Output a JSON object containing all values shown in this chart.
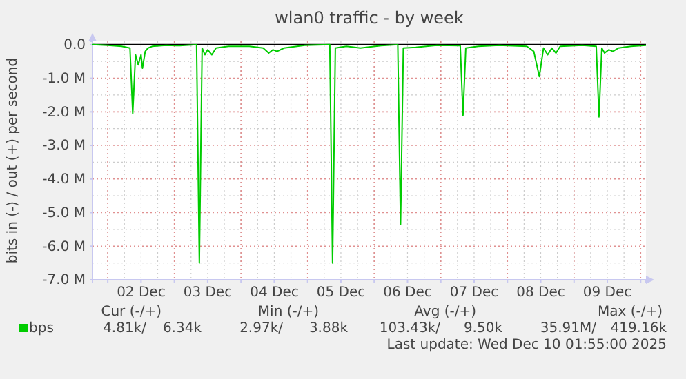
{
  "chart_data": {
    "type": "line",
    "title": "wlan0 traffic - by week",
    "ylabel": "bits in (-) / out (+) per second",
    "x": [
      "2025-12-01T18:30",
      "2025-12-02T00:00",
      "2025-12-02T05:00",
      "2025-12-02T08:00",
      "2025-12-02T09:00",
      "2025-12-02T10:00",
      "2025-12-02T11:00",
      "2025-12-02T12:00",
      "2025-12-02T12:30",
      "2025-12-02T13:30",
      "2025-12-02T14:30",
      "2025-12-02T16:00",
      "2025-12-02T21:00",
      "2025-12-03T02:00",
      "2025-12-03T08:00",
      "2025-12-03T09:00",
      "2025-12-03T10:00",
      "2025-12-03T11:00",
      "2025-12-03T12:00",
      "2025-12-03T13:30",
      "2025-12-03T15:00",
      "2025-12-03T19:30",
      "2025-12-04T03:00",
      "2025-12-04T08:00",
      "2025-12-04T10:00",
      "2025-12-04T11:30",
      "2025-12-04T13:00",
      "2025-12-04T15:30",
      "2025-12-04T23:00",
      "2025-12-05T08:00",
      "2025-12-05T09:00",
      "2025-12-05T10:00",
      "2025-12-05T14:00",
      "2025-12-05T19:00",
      "2025-12-06T02:30",
      "2025-12-06T08:30",
      "2025-12-06T09:30",
      "2025-12-06T10:30",
      "2025-12-06T15:00",
      "2025-12-06T22:30",
      "2025-12-07T07:00",
      "2025-12-07T08:00",
      "2025-12-07T09:00",
      "2025-12-07T13:30",
      "2025-12-07T21:00",
      "2025-12-08T07:00",
      "2025-12-08T09:30",
      "2025-12-08T11:30",
      "2025-12-08T13:00",
      "2025-12-08T14:30",
      "2025-12-08T16:00",
      "2025-12-08T17:30",
      "2025-12-08T19:00",
      "2025-12-09T03:00",
      "2025-12-09T08:00",
      "2025-12-09T09:00",
      "2025-12-09T10:00",
      "2025-12-09T11:00",
      "2025-12-09T12:30",
      "2025-12-09T14:00",
      "2025-12-09T16:00",
      "2025-12-09T20:30",
      "2025-12-10T01:55"
    ],
    "series": [
      {
        "name": "bps",
        "color": "#00cc00",
        "values": [
          0,
          -0.02,
          -0.05,
          -0.1,
          -2.05,
          -0.3,
          -0.6,
          -0.3,
          -0.7,
          -0.2,
          -0.1,
          -0.05,
          -0.02,
          -0.03,
          0,
          -6.5,
          -0.1,
          -0.3,
          -0.15,
          -0.3,
          -0.1,
          -0.05,
          -0.05,
          -0.1,
          -0.25,
          -0.15,
          -0.2,
          -0.1,
          -0.02,
          0,
          -6.5,
          -0.1,
          -0.05,
          -0.1,
          -0.03,
          0,
          -5.35,
          -0.1,
          -0.08,
          -0.02,
          -0.03,
          -2.1,
          -0.1,
          -0.05,
          -0.02,
          -0.05,
          -0.2,
          -0.95,
          -0.1,
          -0.3,
          -0.1,
          -0.25,
          -0.05,
          -0.02,
          -0.05,
          -2.15,
          -0.1,
          -0.25,
          -0.15,
          -0.2,
          -0.1,
          -0.05,
          -0.02
        ]
      }
    ],
    "xlim": [
      "2025-12-01T18:30",
      "2025-12-10T01:55"
    ],
    "xticks": [
      {
        "value": "2025-12-02T00:00",
        "label": null
      },
      {
        "value": "2025-12-02T12:00",
        "label": "02 Dec"
      },
      {
        "value": "2025-12-03T00:00",
        "label": null
      },
      {
        "value": "2025-12-03T12:00",
        "label": "03 Dec"
      },
      {
        "value": "2025-12-04T00:00",
        "label": null
      },
      {
        "value": "2025-12-04T12:00",
        "label": "04 Dec"
      },
      {
        "value": "2025-12-05T00:00",
        "label": null
      },
      {
        "value": "2025-12-05T12:00",
        "label": "05 Dec"
      },
      {
        "value": "2025-12-06T00:00",
        "label": null
      },
      {
        "value": "2025-12-06T12:00",
        "label": "06 Dec"
      },
      {
        "value": "2025-12-07T00:00",
        "label": null
      },
      {
        "value": "2025-12-07T12:00",
        "label": "07 Dec"
      },
      {
        "value": "2025-12-08T00:00",
        "label": null
      },
      {
        "value": "2025-12-08T12:00",
        "label": "08 Dec"
      },
      {
        "value": "2025-12-09T00:00",
        "label": null
      },
      {
        "value": "2025-12-09T12:00",
        "label": "09 Dec"
      },
      {
        "value": "2025-12-10T00:00",
        "label": null
      }
    ],
    "ylim": [
      -7,
      0.1
    ],
    "yticks": [
      {
        "value": 0,
        "label": "0.0"
      },
      {
        "value": -1,
        "label": "-1.0 M"
      },
      {
        "value": -2,
        "label": "-2.0 M"
      },
      {
        "value": -3,
        "label": "-3.0 M"
      },
      {
        "value": -4,
        "label": "-4.0 M"
      },
      {
        "value": -5,
        "label": "-5.0 M"
      },
      {
        "value": -6,
        "label": "-6.0 M"
      },
      {
        "value": -7,
        "label": "-7.0 M"
      }
    ],
    "ref_lines": [
      {
        "axis": "y",
        "value": 0,
        "label": null,
        "color": "#000000"
      }
    ],
    "grid": true,
    "legend": "bottom left",
    "marker": "none",
    "line_style": "solid",
    "annotations": [
      "Cur (-/+)",
      "Min (-/+)",
      "Avg (-/+)",
      "Max (-/+)",
      "4.81k/",
      "6.34k",
      "2.97k/",
      "3.88k",
      "103.43k/",
      "9.50k",
      "35.91M/",
      "419.16k",
      "Last update: Wed Dec 10 01:55:00 2025"
    ]
  }
}
